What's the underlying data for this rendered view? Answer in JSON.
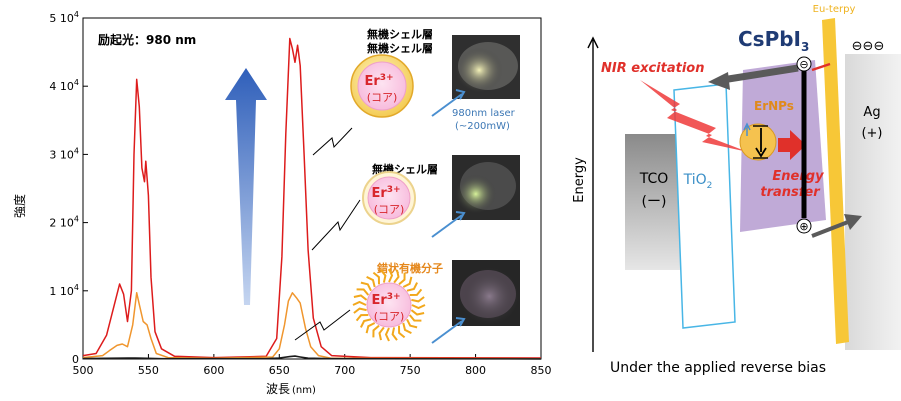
{
  "chart_data": {
    "type": "line",
    "title": "",
    "annotation_top_left": "励起光：980 nm",
    "xlabel_main": "波長",
    "xlabel_unit": "(nm)",
    "ylabel": "強度",
    "xlim": [
      500,
      850
    ],
    "ylim": [
      0,
      50000
    ],
    "x_ticks": [
      "500",
      "550",
      "600",
      "650",
      "700",
      "750",
      "800",
      "850"
    ],
    "y_ticks": [
      {
        "m": "0",
        "e": ""
      },
      {
        "m": "1 10",
        "e": "4"
      },
      {
        "m": "2 10",
        "e": "4"
      },
      {
        "m": "3 10",
        "e": "4"
      },
      {
        "m": "4 10",
        "e": "4"
      },
      {
        "m": "5 10",
        "e": "4"
      }
    ],
    "series": [
      {
        "color": "#dd1c1c",
        "points": [
          [
            500,
            500
          ],
          [
            510,
            800
          ],
          [
            518,
            3500
          ],
          [
            524,
            8000
          ],
          [
            528,
            11000
          ],
          [
            531,
            9500
          ],
          [
            534,
            5500
          ],
          [
            537,
            10000
          ],
          [
            539,
            30000
          ],
          [
            541,
            41000
          ],
          [
            543,
            37000
          ],
          [
            545,
            28000
          ],
          [
            547,
            26000
          ],
          [
            548,
            29000
          ],
          [
            550,
            24000
          ],
          [
            552,
            12000
          ],
          [
            555,
            4000
          ],
          [
            560,
            1500
          ],
          [
            570,
            400
          ],
          [
            600,
            200
          ],
          [
            640,
            400
          ],
          [
            648,
            3000
          ],
          [
            652,
            15000
          ],
          [
            655,
            33000
          ],
          [
            658,
            47000
          ],
          [
            660,
            45500
          ],
          [
            662,
            43500
          ],
          [
            664,
            46000
          ],
          [
            666,
            43000
          ],
          [
            669,
            30000
          ],
          [
            672,
            16000
          ],
          [
            676,
            6000
          ],
          [
            682,
            1800
          ],
          [
            690,
            500
          ],
          [
            720,
            200
          ],
          [
            850,
            150
          ]
        ]
      },
      {
        "color": "#f0962e",
        "points": [
          [
            500,
            200
          ],
          [
            515,
            500
          ],
          [
            520,
            1200
          ],
          [
            526,
            2000
          ],
          [
            530,
            2200
          ],
          [
            534,
            1800
          ],
          [
            538,
            5000
          ],
          [
            541,
            9700
          ],
          [
            543,
            8000
          ],
          [
            546,
            5500
          ],
          [
            549,
            5000
          ],
          [
            552,
            3000
          ],
          [
            556,
            800
          ],
          [
            565,
            200
          ],
          [
            600,
            100
          ],
          [
            645,
            300
          ],
          [
            650,
            1500
          ],
          [
            654,
            5000
          ],
          [
            657,
            8500
          ],
          [
            660,
            9700
          ],
          [
            663,
            9000
          ],
          [
            666,
            8200
          ],
          [
            670,
            4500
          ],
          [
            674,
            1800
          ],
          [
            680,
            500
          ],
          [
            690,
            100
          ],
          [
            850,
            50
          ]
        ]
      },
      {
        "color": "#1a1a1a",
        "points": [
          [
            500,
            60
          ],
          [
            540,
            150
          ],
          [
            545,
            120
          ],
          [
            560,
            50
          ],
          [
            640,
            50
          ],
          [
            650,
            150
          ],
          [
            658,
            350
          ],
          [
            662,
            420
          ],
          [
            666,
            300
          ],
          [
            672,
            120
          ],
          [
            690,
            50
          ],
          [
            850,
            20
          ]
        ]
      }
    ],
    "arrow_color": "#3a6bc6"
  },
  "particles": {
    "shell_label_1": "無機シェル層",
    "shell_label_1b": "無機シェル層",
    "shell_label_2": "無機シェル層",
    "ligand_label": "錯状有機分子",
    "core_ion": "Er",
    "core_charge": "3+",
    "core_text": "(コア)",
    "laser_text_1": "980nm laser",
    "laser_text_2": "(~200mW)"
  },
  "diagram": {
    "title_main": "CsPbI",
    "title_sub": "3",
    "eu_label": "Eu-terpy",
    "ligand_charges": "⊖⊖⊖",
    "nir_label": "NIR excitation",
    "ernps_label": "ErNPs",
    "energy_transfer_1": "Energy",
    "energy_transfer_2": "transfer",
    "tco_label": "TCO",
    "tco_sign": "(ー)",
    "tio2_main": "TiO",
    "tio2_sub": "2",
    "ag_label": "Ag",
    "ag_sign": "(+)",
    "energy_axis": "Energy",
    "minus_sign": "⊖",
    "plus_sign": "⊕",
    "caption": "Under the applied reverse bias"
  }
}
